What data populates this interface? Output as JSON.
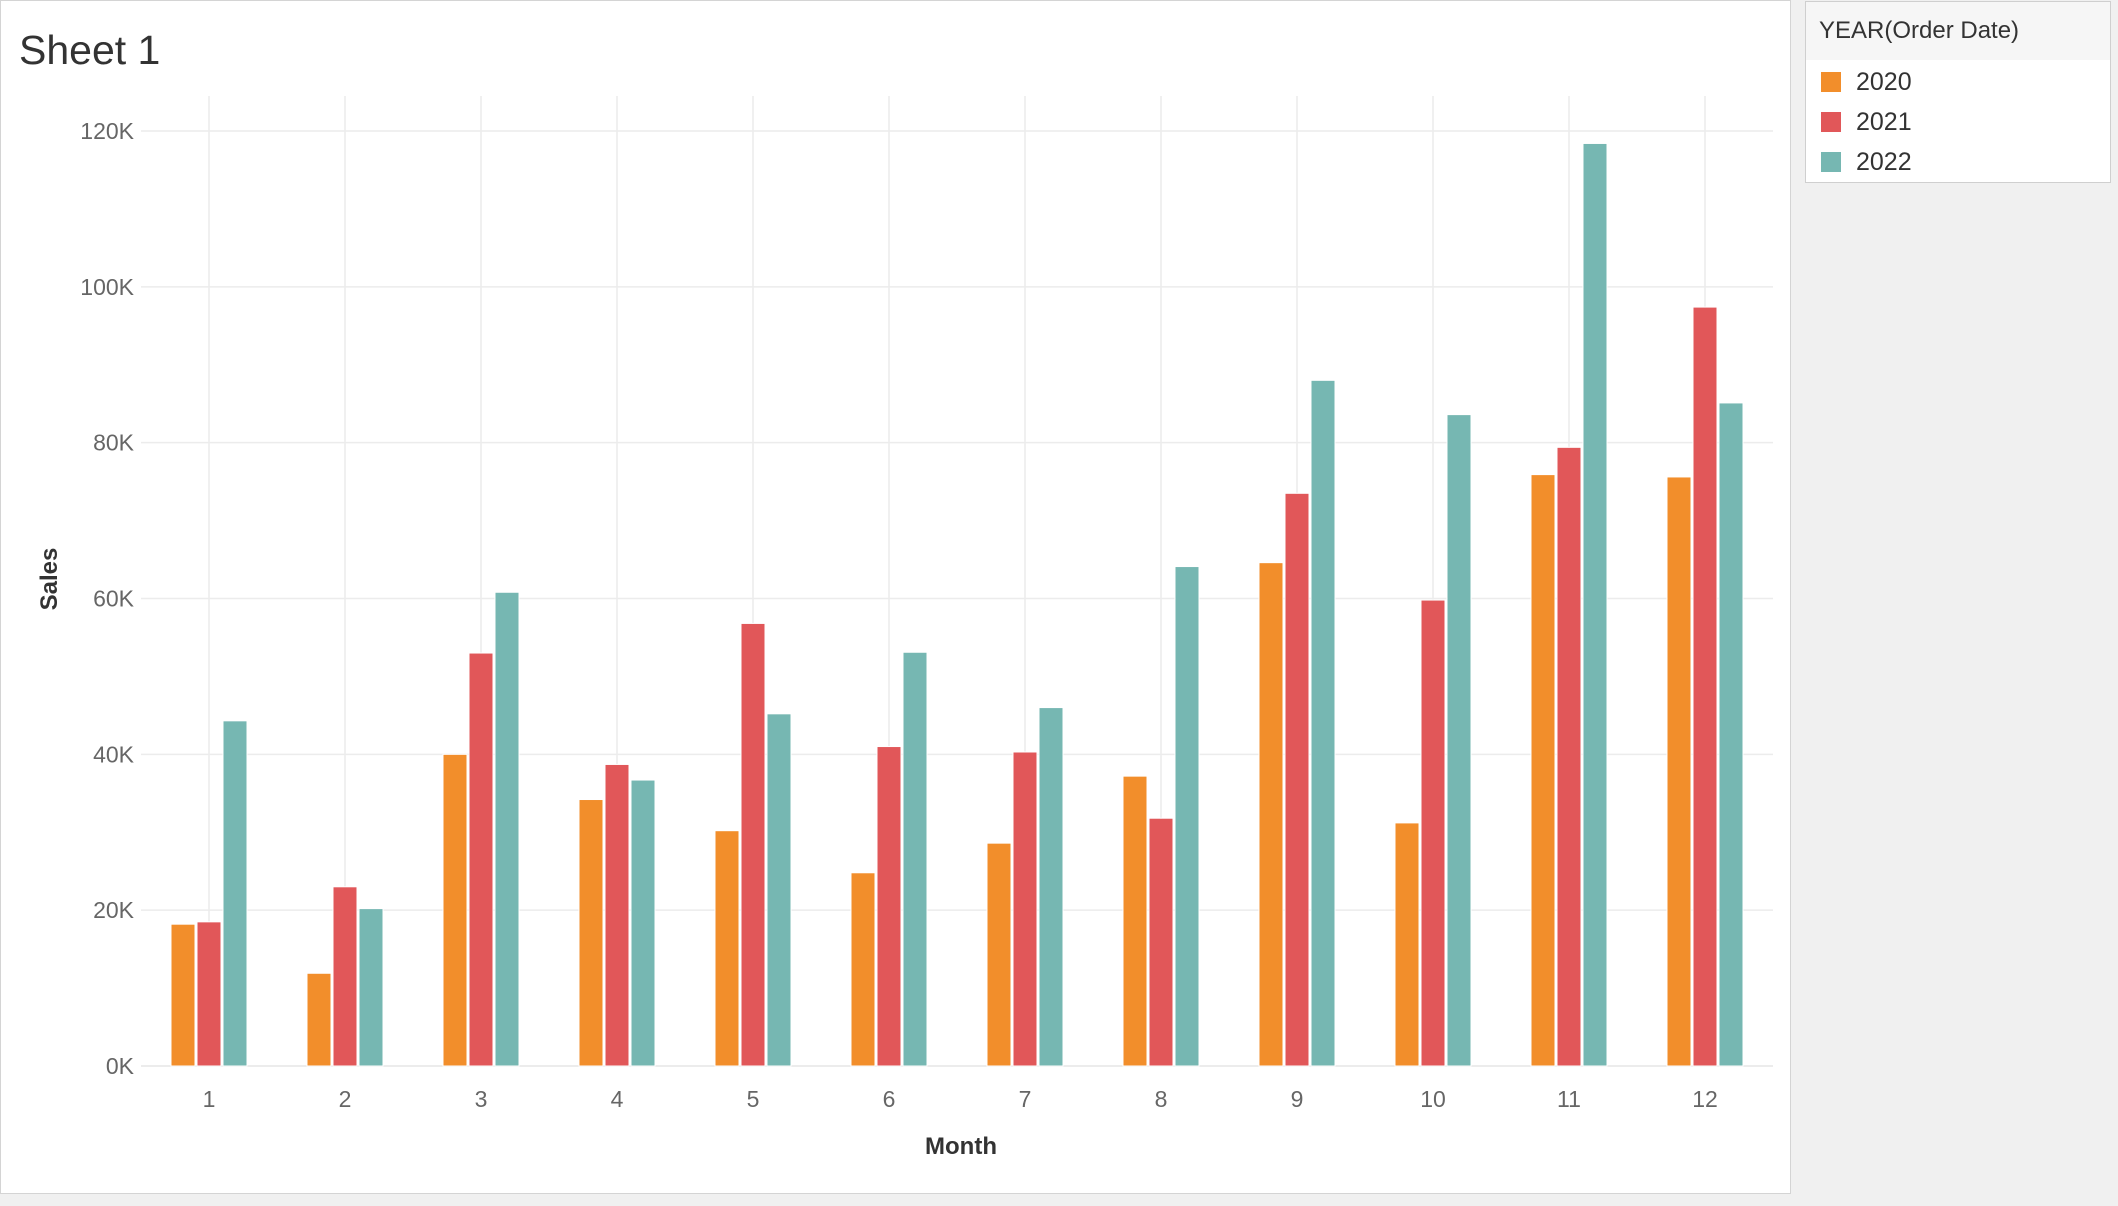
{
  "sheet": {
    "title": "Sheet 1"
  },
  "legend": {
    "title": "YEAR(Order Date)",
    "items": [
      {
        "label": "2020",
        "color": "#f28e2b"
      },
      {
        "label": "2021",
        "color": "#e15759"
      },
      {
        "label": "2022",
        "color": "#76b7b2"
      }
    ]
  },
  "chart_data": {
    "type": "bar",
    "title": "Sheet 1",
    "xlabel": "Month",
    "ylabel": "Sales",
    "categories": [
      "1",
      "2",
      "3",
      "4",
      "5",
      "6",
      "7",
      "8",
      "9",
      "10",
      "11",
      "12"
    ],
    "series": [
      {
        "name": "2020",
        "color": "#f28e2b",
        "values": [
          18200,
          11900,
          40000,
          34200,
          30200,
          24800,
          28600,
          37200,
          64600,
          31200,
          75900,
          75600
        ]
      },
      {
        "name": "2021",
        "color": "#e15759",
        "values": [
          18500,
          23000,
          53000,
          38700,
          56800,
          41000,
          40300,
          31800,
          73500,
          59800,
          79400,
          97400
        ]
      },
      {
        "name": "2022",
        "color": "#76b7b2",
        "values": [
          44300,
          20200,
          60800,
          36700,
          45200,
          53100,
          46000,
          64100,
          88000,
          83600,
          118400,
          85100
        ]
      }
    ],
    "ylim": [
      0,
      120000
    ],
    "yticks": [
      0,
      20000,
      40000,
      60000,
      80000,
      100000,
      120000
    ],
    "ytick_labels": [
      "0K",
      "20K",
      "40K",
      "60K",
      "80K",
      "100K",
      "120K"
    ],
    "grid": true,
    "legend_position": "right"
  }
}
